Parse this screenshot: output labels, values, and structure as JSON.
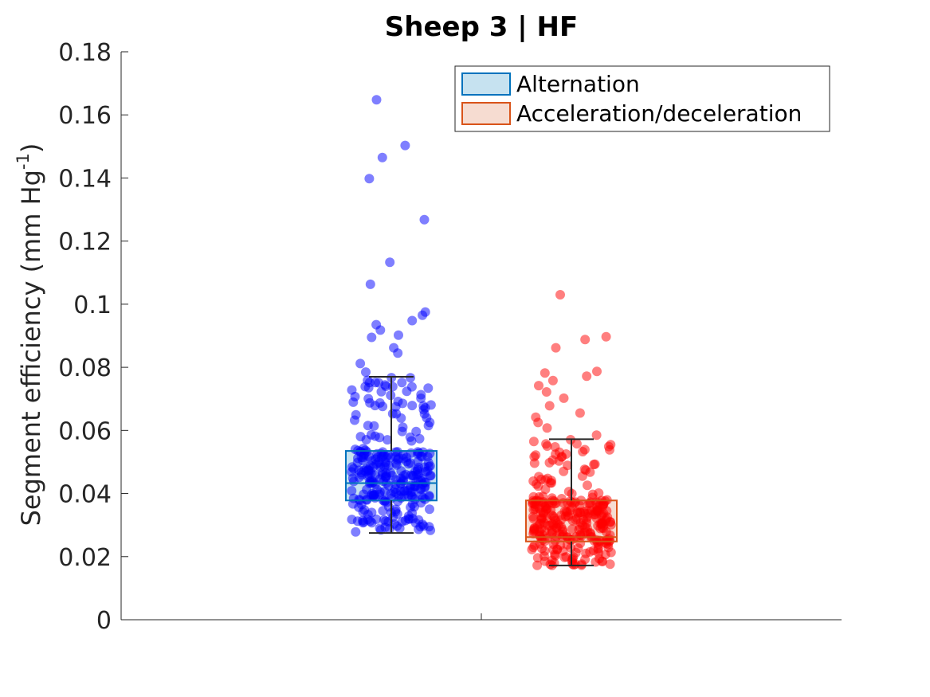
{
  "chart_data": {
    "type": "box",
    "title": "Sheep 3 | HF",
    "ylabel": {
      "main": "Segment efficiency (mm Hg",
      "sup": "-1",
      "close": ")"
    },
    "xlabel": "",
    "ylim": [
      0,
      0.18
    ],
    "yticks": [
      {
        "value": 0,
        "label": "0"
      },
      {
        "value": 0.02,
        "label": "0.02"
      },
      {
        "value": 0.04,
        "label": "0.04"
      },
      {
        "value": 0.06,
        "label": "0.06"
      },
      {
        "value": 0.08,
        "label": "0.08"
      },
      {
        "value": 0.1,
        "label": "0.1"
      },
      {
        "value": 0.12,
        "label": "0.12"
      },
      {
        "value": 0.14,
        "label": "0.14"
      },
      {
        "value": 0.16,
        "label": "0.16"
      },
      {
        "value": 0.18,
        "label": "0.18"
      }
    ],
    "grid": false,
    "legend_position": "top-right",
    "series": [
      {
        "name": "Alternation",
        "box_edge_color": "#0072bd",
        "box_fill_color": "#c6e2f0",
        "point_color": "#0000ff",
        "box": {
          "whisker_low": 0.0275,
          "q1": 0.0378,
          "median": 0.0433,
          "q3": 0.0535,
          "whisker_high": 0.077
        },
        "outliers": [
          0.0785,
          0.0812,
          0.0845,
          0.0862,
          0.0895,
          0.0902,
          0.0918,
          0.0935,
          0.0948,
          0.0965,
          0.0975,
          0.1063,
          0.1133,
          0.1268,
          0.1398,
          0.1465,
          0.1503,
          0.1648
        ]
      },
      {
        "name": "Acceleration/deceleration",
        "box_edge_color": "#d95319",
        "box_fill_color": "#f6dcd1",
        "point_color": "#ff0000",
        "box": {
          "whisker_low": 0.0172,
          "q1": 0.0248,
          "median": 0.0262,
          "q3": 0.0378,
          "whisker_high": 0.0572
        },
        "outliers": [
          0.0585,
          0.0608,
          0.0625,
          0.0642,
          0.0655,
          0.0678,
          0.0702,
          0.0722,
          0.0742,
          0.0758,
          0.0772,
          0.0782,
          0.0787,
          0.0862,
          0.0888,
          0.0897,
          0.103
        ]
      }
    ]
  }
}
